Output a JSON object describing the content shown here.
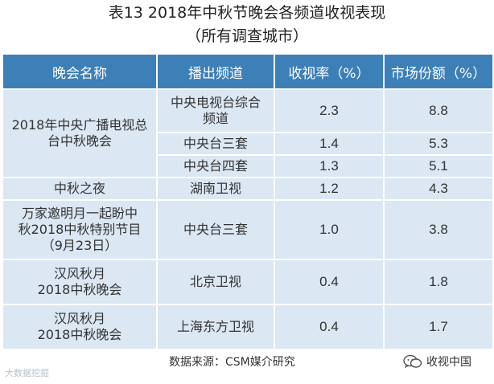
{
  "title": "表13  2018年中秋节晚会各频道收视表现",
  "subtitle": "（所有调查城市）",
  "headers": [
    "晚会名称",
    "播出频道",
    "收视率（%）",
    "市场份额（%）"
  ],
  "rows": [
    {
      "program": "2018年中央广播电视总台中秋晚会",
      "channel": "中央电视台综合频道",
      "rating": "2.3",
      "share": "8.8"
    },
    {
      "channel": "中央台三套",
      "rating": "1.4",
      "share": "5.3"
    },
    {
      "channel": "中央台四套",
      "rating": "1.3",
      "share": "5.1"
    },
    {
      "program": "中秋之夜",
      "channel": "湖南卫视",
      "rating": "1.2",
      "share": "4.3"
    },
    {
      "program_lines": [
        "万家邀明月一起盼中",
        "秋2018中秋特别节目",
        "（9月23日）"
      ],
      "channel": "中央台三套",
      "rating": "1.0",
      "share": "3.8"
    },
    {
      "program_lines": [
        "汉风秋月",
        "2018中秋晚会"
      ],
      "channel": "北京卫视",
      "rating": "0.4",
      "share": "1.8"
    },
    {
      "program_lines": [
        "汉风秋月",
        "2018中秋晚会"
      ],
      "channel": "上海东方卫视",
      "rating": "0.4",
      "share": "1.7"
    }
  ],
  "source": "数据来源：CSM媒介研究",
  "watermark_left": "大数据挖掘",
  "watermark_right": "收视中国"
}
